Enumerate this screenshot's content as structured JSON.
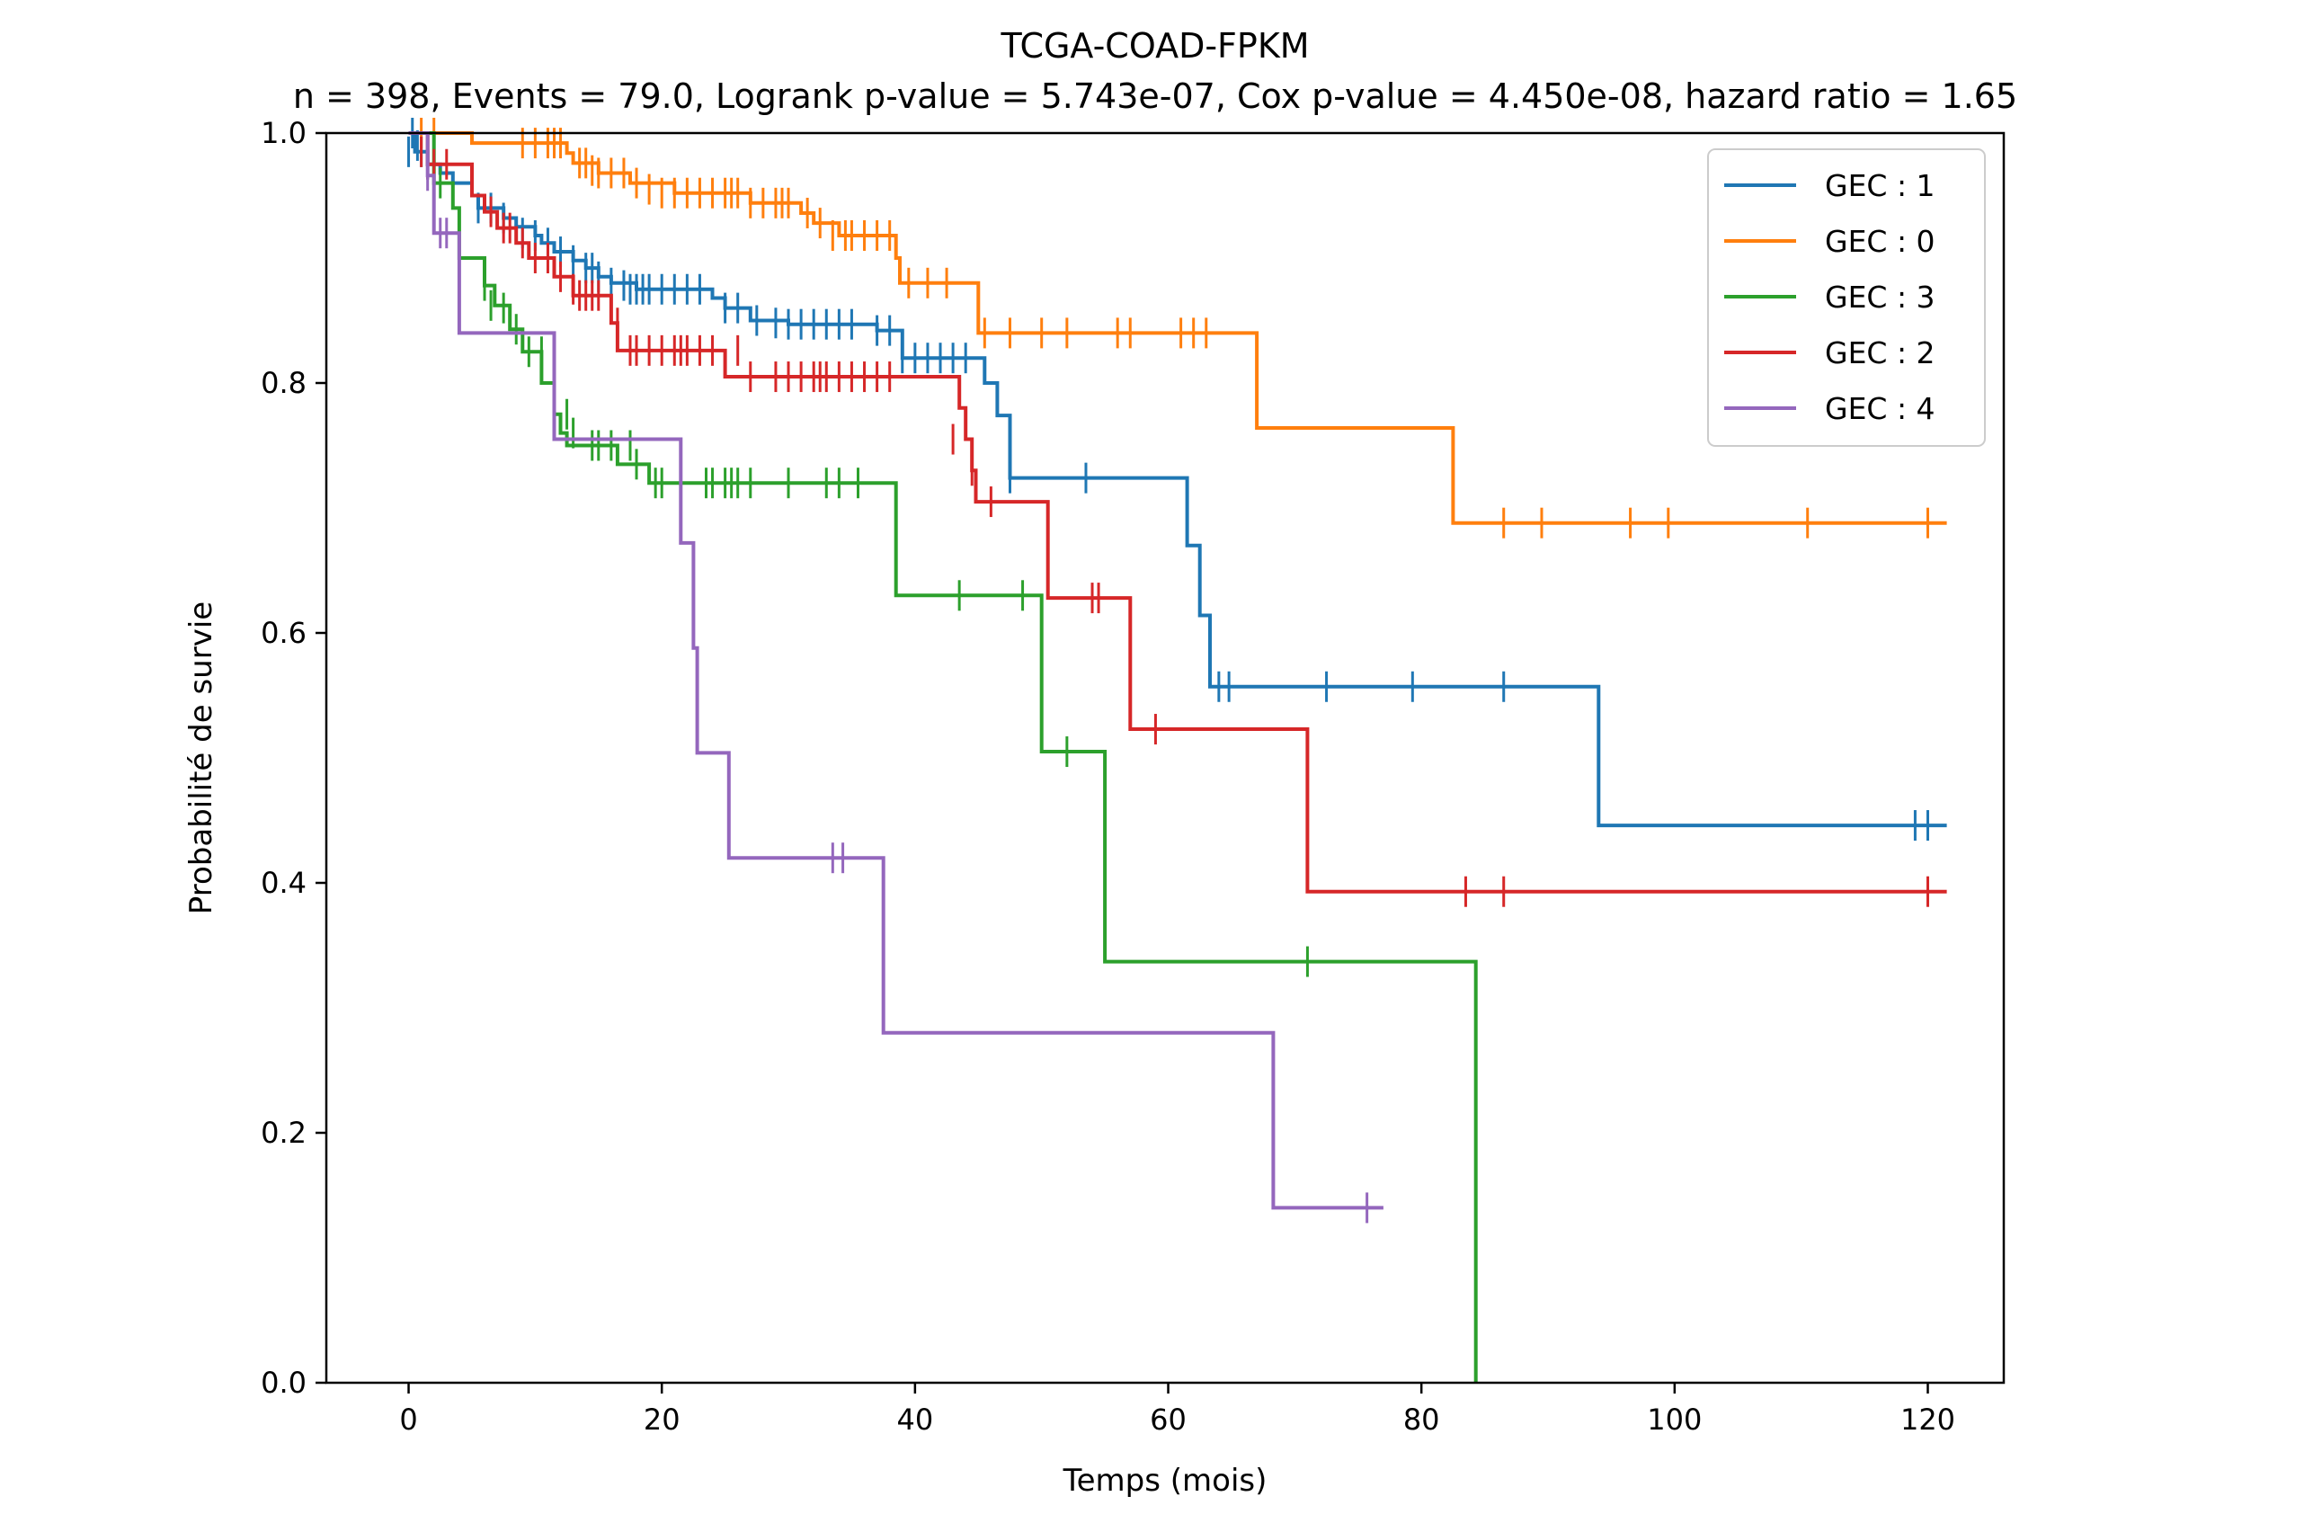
{
  "chart_data": {
    "type": "line",
    "subtype": "kaplan-meier",
    "title": "TCGA-COAD-FPKM",
    "subtitle": "n = 398, Events = 79.0, Logrank p-value = 5.743e-07, Cox p-value = 4.450e-08, hazard ratio = 1.65",
    "xlabel": "Temps (mois)",
    "ylabel": "Probabilité de survie",
    "xlim": [
      -6.5,
      126
    ],
    "ylim": [
      0,
      1
    ],
    "xticks": [
      "0",
      "20",
      "40",
      "60",
      "80",
      "100",
      "120"
    ],
    "yticks": [
      "0.0",
      "0.2",
      "0.4",
      "0.6",
      "0.8",
      "1.0"
    ],
    "grid": false,
    "legend_position": "top-right",
    "series": [
      {
        "name": "GEC : 1",
        "color": "#1f77b4",
        "steps": [
          [
            0,
            1.0
          ],
          [
            0.5,
            0.985
          ],
          [
            1.5,
            0.975
          ],
          [
            2.5,
            0.968
          ],
          [
            3.5,
            0.96
          ],
          [
            5,
            0.95
          ],
          [
            5.5,
            0.94
          ],
          [
            7.5,
            0.932
          ],
          [
            8.5,
            0.925
          ],
          [
            10,
            0.918
          ],
          [
            10.5,
            0.912
          ],
          [
            11.5,
            0.905
          ],
          [
            13,
            0.898
          ],
          [
            14,
            0.892
          ],
          [
            15,
            0.885
          ],
          [
            16,
            0.88
          ],
          [
            18,
            0.875
          ],
          [
            24,
            0.868
          ],
          [
            25,
            0.86
          ],
          [
            27,
            0.85
          ],
          [
            30,
            0.847
          ],
          [
            37,
            0.842
          ],
          [
            39,
            0.82
          ],
          [
            44,
            0.82
          ],
          [
            45.5,
            0.8
          ],
          [
            46.5,
            0.774
          ],
          [
            47.5,
            0.724
          ],
          [
            61.5,
            0.67
          ],
          [
            62.5,
            0.614
          ],
          [
            63.3,
            0.557
          ],
          [
            94,
            0.446
          ],
          [
            121.5,
            0.446
          ]
        ],
        "censors": [
          [
            0,
            0.985
          ],
          [
            0.3,
            1.0
          ],
          [
            0.7,
            0.99
          ],
          [
            1,
            0.985
          ],
          [
            1.5,
            0.975
          ],
          [
            2,
            0.975
          ],
          [
            5.5,
            0.94
          ],
          [
            6.5,
            0.94
          ],
          [
            7.5,
            0.932
          ],
          [
            9,
            0.92
          ],
          [
            10,
            0.918
          ],
          [
            11,
            0.912
          ],
          [
            12,
            0.905
          ],
          [
            13,
            0.898
          ],
          [
            14,
            0.892
          ],
          [
            14.5,
            0.892
          ],
          [
            15,
            0.885
          ],
          [
            16,
            0.88
          ],
          [
            17,
            0.878
          ],
          [
            17.5,
            0.875
          ],
          [
            18,
            0.875
          ],
          [
            18.5,
            0.875
          ],
          [
            19,
            0.875
          ],
          [
            20,
            0.875
          ],
          [
            21,
            0.875
          ],
          [
            22,
            0.875
          ],
          [
            23,
            0.875
          ],
          [
            25,
            0.86
          ],
          [
            26,
            0.86
          ],
          [
            27.5,
            0.85
          ],
          [
            29,
            0.848
          ],
          [
            30,
            0.847
          ],
          [
            31,
            0.847
          ],
          [
            32,
            0.847
          ],
          [
            33,
            0.847
          ],
          [
            34,
            0.847
          ],
          [
            35,
            0.847
          ],
          [
            37,
            0.842
          ],
          [
            38,
            0.842
          ],
          [
            39,
            0.82
          ],
          [
            40,
            0.82
          ],
          [
            41,
            0.82
          ],
          [
            42,
            0.82
          ],
          [
            43,
            0.82
          ],
          [
            44,
            0.82
          ],
          [
            47.5,
            0.724
          ],
          [
            53.5,
            0.724
          ],
          [
            64,
            0.557
          ],
          [
            64.8,
            0.557
          ],
          [
            72.5,
            0.557
          ],
          [
            79.3,
            0.557
          ],
          [
            86.5,
            0.557
          ],
          [
            119,
            0.446
          ],
          [
            120,
            0.446
          ]
        ]
      },
      {
        "name": "GEC : 0",
        "color": "#ff7f0e",
        "steps": [
          [
            0,
            1.0
          ],
          [
            5,
            0.992
          ],
          [
            12.5,
            0.984
          ],
          [
            13,
            0.976
          ],
          [
            15,
            0.968
          ],
          [
            17.5,
            0.96
          ],
          [
            21,
            0.952
          ],
          [
            27,
            0.944
          ],
          [
            31,
            0.936
          ],
          [
            32,
            0.928
          ],
          [
            34,
            0.918
          ],
          [
            38.5,
            0.9
          ],
          [
            38.8,
            0.88
          ],
          [
            45,
            0.84
          ],
          [
            67,
            0.84
          ],
          [
            67,
            0.764
          ],
          [
            82.5,
            0.764
          ],
          [
            82.5,
            0.688
          ],
          [
            121.5,
            0.688
          ]
        ],
        "censors": [
          [
            1,
            1.0
          ],
          [
            2,
            1.0
          ],
          [
            9,
            0.992
          ],
          [
            10,
            0.992
          ],
          [
            11,
            0.992
          ],
          [
            11.5,
            0.992
          ],
          [
            12,
            0.992
          ],
          [
            13.5,
            0.976
          ],
          [
            14,
            0.976
          ],
          [
            14.5,
            0.97
          ],
          [
            15,
            0.968
          ],
          [
            16,
            0.968
          ],
          [
            17,
            0.968
          ],
          [
            18,
            0.96
          ],
          [
            19,
            0.955
          ],
          [
            20,
            0.952
          ],
          [
            21,
            0.952
          ],
          [
            22,
            0.952
          ],
          [
            23,
            0.952
          ],
          [
            24,
            0.952
          ],
          [
            25,
            0.952
          ],
          [
            25.5,
            0.952
          ],
          [
            26,
            0.952
          ],
          [
            27,
            0.944
          ],
          [
            28,
            0.944
          ],
          [
            29,
            0.944
          ],
          [
            29.5,
            0.944
          ],
          [
            30,
            0.944
          ],
          [
            31.5,
            0.936
          ],
          [
            32.5,
            0.928
          ],
          [
            33.5,
            0.918
          ],
          [
            34.5,
            0.918
          ],
          [
            35,
            0.918
          ],
          [
            36,
            0.918
          ],
          [
            37,
            0.918
          ],
          [
            38,
            0.918
          ],
          [
            39.5,
            0.88
          ],
          [
            41,
            0.88
          ],
          [
            42.5,
            0.88
          ],
          [
            45.5,
            0.84
          ],
          [
            47.5,
            0.84
          ],
          [
            50,
            0.84
          ],
          [
            52,
            0.84
          ],
          [
            56,
            0.84
          ],
          [
            57,
            0.84
          ],
          [
            61,
            0.84
          ],
          [
            62,
            0.84
          ],
          [
            63,
            0.84
          ],
          [
            86.5,
            0.688
          ],
          [
            89.5,
            0.688
          ],
          [
            96.5,
            0.688
          ],
          [
            99.5,
            0.688
          ],
          [
            110.5,
            0.688
          ],
          [
            120,
            0.688
          ]
        ]
      },
      {
        "name": "GEC : 3",
        "color": "#2ca02c",
        "steps": [
          [
            0,
            1.0
          ],
          [
            2,
            0.96
          ],
          [
            3.5,
            0.94
          ],
          [
            4,
            0.9
          ],
          [
            6,
            0.878
          ],
          [
            6.8,
            0.862
          ],
          [
            8,
            0.843
          ],
          [
            9,
            0.825
          ],
          [
            10.5,
            0.8
          ],
          [
            11.5,
            0.775
          ],
          [
            12,
            0.76
          ],
          [
            12.5,
            0.75
          ],
          [
            16.5,
            0.735
          ],
          [
            19,
            0.72
          ],
          [
            38.5,
            0.72
          ],
          [
            38.5,
            0.63
          ],
          [
            50,
            0.63
          ],
          [
            50,
            0.505
          ],
          [
            55,
            0.505
          ],
          [
            55,
            0.337
          ],
          [
            84.3,
            0.337
          ],
          [
            84.3,
            0.0
          ]
        ],
        "censors": [
          [
            2.5,
            0.96
          ],
          [
            6,
            0.878
          ],
          [
            6.5,
            0.862
          ],
          [
            7.5,
            0.86
          ],
          [
            8.5,
            0.843
          ],
          [
            9.5,
            0.825
          ],
          [
            10.5,
            0.825
          ],
          [
            12.5,
            0.775
          ],
          [
            13,
            0.76
          ],
          [
            14.5,
            0.75
          ],
          [
            15,
            0.75
          ],
          [
            16,
            0.75
          ],
          [
            17.5,
            0.75
          ],
          [
            18,
            0.735
          ],
          [
            19.5,
            0.72
          ],
          [
            20,
            0.72
          ],
          [
            21.5,
            0.72
          ],
          [
            23.5,
            0.72
          ],
          [
            24,
            0.72
          ],
          [
            25,
            0.72
          ],
          [
            25.5,
            0.72
          ],
          [
            26,
            0.72
          ],
          [
            27,
            0.72
          ],
          [
            30,
            0.72
          ],
          [
            33,
            0.72
          ],
          [
            34,
            0.72
          ],
          [
            35.5,
            0.72
          ],
          [
            43.5,
            0.63
          ],
          [
            48.5,
            0.63
          ],
          [
            52,
            0.505
          ],
          [
            71,
            0.337
          ]
        ]
      },
      {
        "name": "GEC : 2",
        "color": "#d62728",
        "steps": [
          [
            0,
            1.0
          ],
          [
            1.5,
            0.975
          ],
          [
            5,
            0.95
          ],
          [
            6,
            0.937
          ],
          [
            7,
            0.924
          ],
          [
            8.5,
            0.912
          ],
          [
            9.5,
            0.9
          ],
          [
            11.5,
            0.885
          ],
          [
            13,
            0.87
          ],
          [
            16,
            0.848
          ],
          [
            16.5,
            0.826
          ],
          [
            25,
            0.826
          ],
          [
            25,
            0.805
          ],
          [
            43.5,
            0.805
          ],
          [
            43.5,
            0.78
          ],
          [
            44,
            0.755
          ],
          [
            44.5,
            0.73
          ],
          [
            44.8,
            0.705
          ],
          [
            50.5,
            0.705
          ],
          [
            50.5,
            0.628
          ],
          [
            57,
            0.628
          ],
          [
            57,
            0.523
          ],
          [
            71,
            0.523
          ],
          [
            71,
            0.393
          ],
          [
            121.5,
            0.393
          ]
        ],
        "censors": [
          [
            1,
            0.985
          ],
          [
            1.5,
            0.975
          ],
          [
            2,
            0.975
          ],
          [
            3,
            0.975
          ],
          [
            6.5,
            0.937
          ],
          [
            7.5,
            0.924
          ],
          [
            8,
            0.924
          ],
          [
            9,
            0.912
          ],
          [
            10,
            0.9
          ],
          [
            11,
            0.9
          ],
          [
            12,
            0.885
          ],
          [
            13,
            0.875
          ],
          [
            13.5,
            0.87
          ],
          [
            14,
            0.87
          ],
          [
            14.5,
            0.87
          ],
          [
            15,
            0.87
          ],
          [
            16.5,
            0.848
          ],
          [
            17.5,
            0.826
          ],
          [
            18,
            0.826
          ],
          [
            19,
            0.826
          ],
          [
            20,
            0.826
          ],
          [
            21,
            0.826
          ],
          [
            21.5,
            0.826
          ],
          [
            22,
            0.826
          ],
          [
            23,
            0.826
          ],
          [
            24,
            0.826
          ],
          [
            26,
            0.826
          ],
          [
            27,
            0.805
          ],
          [
            29,
            0.805
          ],
          [
            30,
            0.805
          ],
          [
            31,
            0.805
          ],
          [
            32,
            0.805
          ],
          [
            32.5,
            0.805
          ],
          [
            33,
            0.805
          ],
          [
            34,
            0.805
          ],
          [
            35,
            0.805
          ],
          [
            36,
            0.805
          ],
          [
            37,
            0.805
          ],
          [
            38,
            0.805
          ],
          [
            43,
            0.755
          ],
          [
            44.5,
            0.73
          ],
          [
            46,
            0.705
          ],
          [
            54,
            0.628
          ],
          [
            54.5,
            0.628
          ],
          [
            59,
            0.523
          ],
          [
            83.5,
            0.393
          ],
          [
            86.5,
            0.393
          ],
          [
            120,
            0.393
          ]
        ]
      },
      {
        "name": "GEC : 4",
        "color": "#9467bd",
        "steps": [
          [
            0,
            1.0
          ],
          [
            1.5,
            0.966
          ],
          [
            2,
            0.92
          ],
          [
            4,
            0.84
          ],
          [
            11.5,
            0.84
          ],
          [
            11.5,
            0.755
          ],
          [
            21.5,
            0.755
          ],
          [
            21.5,
            0.672
          ],
          [
            22.5,
            0.588
          ],
          [
            22.8,
            0.504
          ],
          [
            25.3,
            0.504
          ],
          [
            25.3,
            0.42
          ],
          [
            37.5,
            0.42
          ],
          [
            37.5,
            0.28
          ],
          [
            68.3,
            0.28
          ],
          [
            68.3,
            0.14
          ],
          [
            77,
            0.14
          ]
        ],
        "censors": [
          [
            1.5,
            0.966
          ],
          [
            2.5,
            0.92
          ],
          [
            3,
            0.92
          ],
          [
            33.5,
            0.42
          ],
          [
            34.3,
            0.42
          ],
          [
            75.7,
            0.14
          ]
        ]
      }
    ]
  }
}
